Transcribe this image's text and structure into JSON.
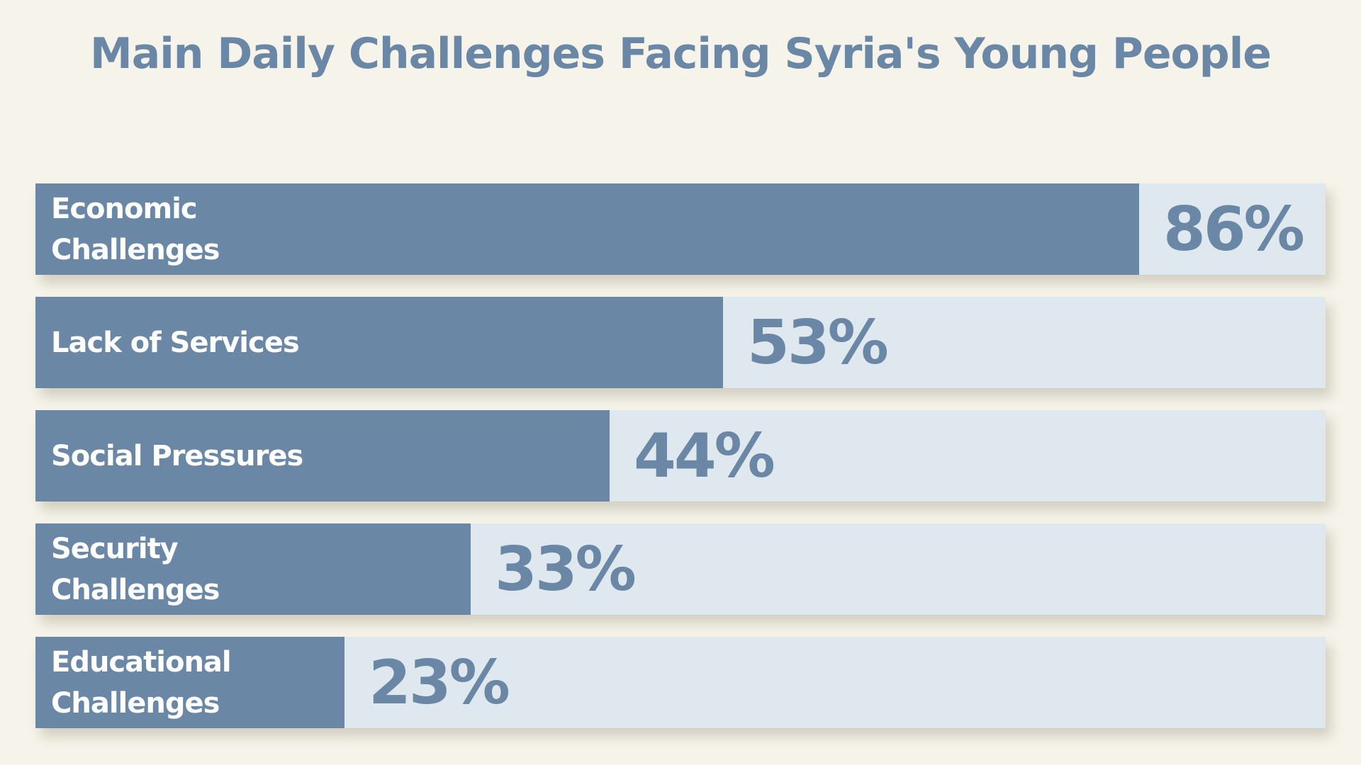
{
  "chart_data": {
    "type": "bar",
    "orientation": "horizontal",
    "title": "Main Daily Challenges Facing Syria's Young People",
    "xlabel": "",
    "ylabel": "",
    "xlim": [
      0,
      100
    ],
    "grid": false,
    "unit_suffix": "%",
    "categories": [
      "Economic Challenges",
      "Lack of Services",
      "Social Pressures",
      "Security Challenges",
      "Educational Challenges"
    ],
    "values": [
      86,
      53,
      44,
      33,
      23
    ],
    "value_labels": [
      "86%",
      "53%",
      "44%",
      "33%",
      "23%"
    ],
    "colors": {
      "bar": "#6a87a6",
      "track": "#e0e8ef",
      "background": "#f6f4ea",
      "label_text": "#ffffff",
      "value_text": "#6a87a6"
    }
  }
}
